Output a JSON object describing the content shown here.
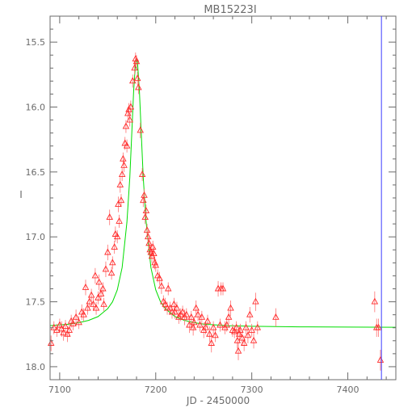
{
  "chart_data": {
    "type": "scatter",
    "title": "MB15223I",
    "xlabel": "JD - 2450000",
    "ylabel": "I",
    "xlim": [
      7090,
      7450
    ],
    "ylim": [
      18.1,
      15.3
    ],
    "y_axis_inverted": true,
    "xticks": [
      7100,
      7200,
      7300,
      7400
    ],
    "yticks": [
      15.5,
      16.0,
      16.5,
      17.0,
      17.5,
      18.0
    ],
    "ytick_labels": [
      "15.5",
      "16.0",
      "16.5",
      "17.0",
      "17.5",
      "18.0"
    ],
    "grid": false,
    "colors": {
      "axes": "#6b6b6b",
      "points": "#ff2a2a",
      "errorbars": "#ff7070",
      "fit": "#00dd00",
      "marker_line": "#3c3cff"
    },
    "vertical_marker_x": 7435,
    "model_fit": {
      "name": "",
      "points": [
        [
          7090,
          17.684
        ],
        [
          7110,
          17.672
        ],
        [
          7120,
          17.661
        ],
        [
          7130,
          17.643
        ],
        [
          7140,
          17.614
        ],
        [
          7150,
          17.553
        ],
        [
          7155,
          17.5
        ],
        [
          7160,
          17.408
        ],
        [
          7165,
          17.236
        ],
        [
          7170,
          16.887
        ],
        [
          7173,
          16.541
        ],
        [
          7175,
          16.208
        ],
        [
          7177,
          15.88
        ],
        [
          7179,
          15.655
        ],
        [
          7180,
          15.631
        ],
        [
          7181,
          15.655
        ],
        [
          7183,
          15.88
        ],
        [
          7185,
          16.208
        ],
        [
          7187,
          16.541
        ],
        [
          7190,
          16.887
        ],
        [
          7195,
          17.236
        ],
        [
          7200,
          17.408
        ],
        [
          7205,
          17.5
        ],
        [
          7210,
          17.553
        ],
        [
          7220,
          17.614
        ],
        [
          7230,
          17.643
        ],
        [
          7240,
          17.661
        ],
        [
          7250,
          17.672
        ],
        [
          7275,
          17.684
        ],
        [
          7300,
          17.689
        ],
        [
          7350,
          17.693
        ],
        [
          7400,
          17.695
        ],
        [
          7450,
          17.696
        ]
      ]
    },
    "series": [
      {
        "name": "",
        "points": [
          [
            7091,
            17.82,
            0.06
          ],
          [
            7094,
            17.7,
            0.05
          ],
          [
            7097,
            17.72,
            0.05
          ],
          [
            7100,
            17.68,
            0.05
          ],
          [
            7102,
            17.71,
            0.06
          ],
          [
            7104,
            17.74,
            0.06
          ],
          [
            7106,
            17.69,
            0.05
          ],
          [
            7108,
            17.75,
            0.06
          ],
          [
            7110,
            17.72,
            0.05
          ],
          [
            7112,
            17.65,
            0.05
          ],
          [
            7114,
            17.67,
            0.05
          ],
          [
            7117,
            17.62,
            0.06
          ],
          [
            7120,
            17.66,
            0.05
          ],
          [
            7123,
            17.58,
            0.06
          ],
          [
            7125,
            17.6,
            0.05
          ],
          [
            7127,
            17.39,
            0.06
          ],
          [
            7129,
            17.55,
            0.05
          ],
          [
            7131,
            17.5,
            0.05
          ],
          [
            7133,
            17.45,
            0.05
          ],
          [
            7135,
            17.52,
            0.05
          ],
          [
            7137,
            17.3,
            0.06
          ],
          [
            7138,
            17.55,
            0.05
          ],
          [
            7140,
            17.47,
            0.05
          ],
          [
            7141,
            17.35,
            0.06
          ],
          [
            7143,
            17.44,
            0.05
          ],
          [
            7145,
            17.4,
            0.05
          ],
          [
            7146,
            17.52,
            0.05
          ],
          [
            7148,
            17.25,
            0.06
          ],
          [
            7150,
            17.12,
            0.06
          ],
          [
            7152,
            16.85,
            0.06
          ],
          [
            7154,
            17.28,
            0.05
          ],
          [
            7155,
            17.2,
            0.05
          ],
          [
            7157,
            17.08,
            0.05
          ],
          [
            7158,
            16.98,
            0.06
          ],
          [
            7160,
            17.0,
            0.05
          ],
          [
            7161,
            16.75,
            0.06
          ],
          [
            7162,
            16.88,
            0.05
          ],
          [
            7163,
            16.6,
            0.06
          ],
          [
            7164,
            16.72,
            0.05
          ],
          [
            7165,
            16.52,
            0.05
          ],
          [
            7166,
            16.4,
            0.05
          ],
          [
            7167,
            16.45,
            0.05
          ],
          [
            7168,
            16.28,
            0.05
          ],
          [
            7169,
            16.15,
            0.05
          ],
          [
            7170,
            16.3,
            0.05
          ],
          [
            7171,
            16.05,
            0.05
          ],
          [
            7172,
            16.02,
            0.05
          ],
          [
            7173,
            16.1,
            0.05
          ],
          [
            7174,
            16.0,
            0.05
          ],
          [
            7176,
            15.8,
            0.05
          ],
          [
            7178,
            15.7,
            0.05
          ],
          [
            7179,
            15.63,
            0.05
          ],
          [
            7180,
            15.65,
            0.05
          ],
          [
            7181,
            15.78,
            0.05
          ],
          [
            7182,
            15.85,
            0.05
          ],
          [
            7184,
            16.18,
            0.06
          ],
          [
            7186,
            16.52,
            0.05
          ],
          [
            7187,
            16.72,
            0.05
          ],
          [
            7188,
            16.68,
            0.05
          ],
          [
            7189,
            16.85,
            0.05
          ],
          [
            7190,
            16.8,
            0.05
          ],
          [
            7191,
            16.95,
            0.05
          ],
          [
            7192,
            17.0,
            0.05
          ],
          [
            7193,
            17.05,
            0.05
          ],
          [
            7194,
            17.1,
            0.05
          ],
          [
            7195,
            17.12,
            0.05
          ],
          [
            7196,
            17.15,
            0.05
          ],
          [
            7197,
            17.08,
            0.05
          ],
          [
            7198,
            17.13,
            0.05
          ],
          [
            7199,
            17.2,
            0.05
          ],
          [
            7200,
            17.22,
            0.05
          ],
          [
            7202,
            17.3,
            0.05
          ],
          [
            7204,
            17.32,
            0.05
          ],
          [
            7206,
            17.38,
            0.06
          ],
          [
            7208,
            17.5,
            0.05
          ],
          [
            7210,
            17.52,
            0.05
          ],
          [
            7212,
            17.55,
            0.05
          ],
          [
            7213,
            17.4,
            0.05
          ],
          [
            7215,
            17.55,
            0.05
          ],
          [
            7217,
            17.58,
            0.05
          ],
          [
            7219,
            17.52,
            0.05
          ],
          [
            7220,
            17.58,
            0.05
          ],
          [
            7222,
            17.55,
            0.05
          ],
          [
            7224,
            17.62,
            0.05
          ],
          [
            7226,
            17.6,
            0.05
          ],
          [
            7228,
            17.58,
            0.05
          ],
          [
            7230,
            17.62,
            0.06
          ],
          [
            7232,
            17.6,
            0.05
          ],
          [
            7235,
            17.68,
            0.06
          ],
          [
            7237,
            17.62,
            0.05
          ],
          [
            7239,
            17.7,
            0.06
          ],
          [
            7240,
            17.66,
            0.05
          ],
          [
            7242,
            17.55,
            0.06
          ],
          [
            7244,
            17.6,
            0.05
          ],
          [
            7246,
            17.68,
            0.05
          ],
          [
            7248,
            17.62,
            0.05
          ],
          [
            7250,
            17.72,
            0.06
          ],
          [
            7252,
            17.7,
            0.05
          ],
          [
            7254,
            17.65,
            0.05
          ],
          [
            7256,
            17.75,
            0.06
          ],
          [
            7258,
            17.82,
            0.07
          ],
          [
            7260,
            17.7,
            0.05
          ],
          [
            7262,
            17.76,
            0.05
          ],
          [
            7265,
            17.4,
            0.06
          ],
          [
            7267,
            17.68,
            0.05
          ],
          [
            7268,
            17.4,
            0.05
          ],
          [
            7270,
            17.4,
            0.05
          ],
          [
            7272,
            17.7,
            0.05
          ],
          [
            7274,
            17.68,
            0.05
          ],
          [
            7276,
            17.62,
            0.05
          ],
          [
            7278,
            17.55,
            0.06
          ],
          [
            7280,
            17.72,
            0.05
          ],
          [
            7282,
            17.73,
            0.05
          ],
          [
            7284,
            17.7,
            0.05
          ],
          [
            7285,
            17.8,
            0.06
          ],
          [
            7286,
            17.88,
            0.07
          ],
          [
            7287,
            17.75,
            0.06
          ],
          [
            7288,
            17.72,
            0.05
          ],
          [
            7290,
            17.78,
            0.06
          ],
          [
            7292,
            17.82,
            0.06
          ],
          [
            7294,
            17.7,
            0.05
          ],
          [
            7296,
            17.76,
            0.06
          ],
          [
            7298,
            17.6,
            0.06
          ],
          [
            7300,
            17.72,
            0.05
          ],
          [
            7302,
            17.8,
            0.06
          ],
          [
            7304,
            17.5,
            0.07
          ],
          [
            7306,
            17.7,
            0.05
          ],
          [
            7325,
            17.62,
            0.07
          ],
          [
            7428,
            17.5,
            0.08
          ],
          [
            7430,
            17.7,
            0.07
          ],
          [
            7432,
            17.7,
            0.07
          ],
          [
            7434,
            17.95,
            0.08
          ]
        ]
      }
    ]
  }
}
